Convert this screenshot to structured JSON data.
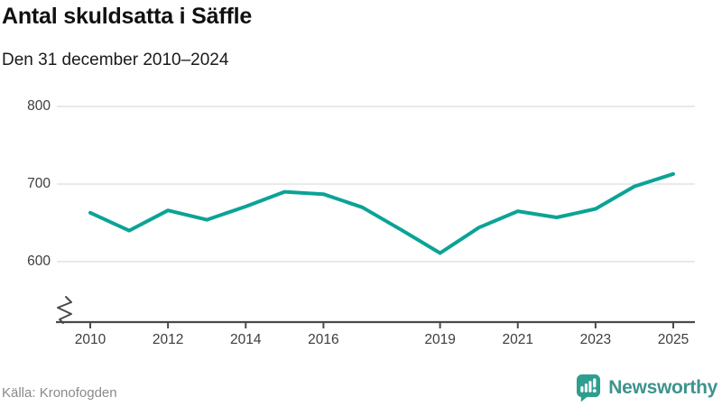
{
  "header": {
    "title": "Antal skuldsatta i Säffle",
    "subtitle": "Den 31 december 2010–2024"
  },
  "footer": {
    "source": "Källa: Kronofogden",
    "brand": {
      "name": "Newsworthy",
      "icon": "bar-chart-speech-bubble-icon",
      "icon_color": "#2F9E8F",
      "text_color": "#3E938C"
    }
  },
  "chart_data": {
    "type": "line",
    "title": "Antal skuldsatta i Säffle",
    "subtitle": "Den 31 december 2010–2024",
    "series_name": "Antal skuldsatta",
    "x": [
      2010,
      2011,
      2012,
      2013,
      2014,
      2015,
      2016,
      2017,
      2018,
      2019,
      2020,
      2021,
      2022,
      2023,
      2024,
      2025
    ],
    "values": [
      663,
      640,
      666,
      654,
      671,
      690,
      687,
      670,
      641,
      611,
      644,
      665,
      657,
      668,
      697,
      713
    ],
    "x_ticks": [
      2010,
      2012,
      2014,
      2016,
      2019,
      2021,
      2023,
      2025
    ],
    "y_ticks": [
      600,
      700,
      800
    ],
    "ylim": [
      600,
      800
    ],
    "y_axis_break": true,
    "grid": true,
    "legend": "none",
    "line_color": "#0BA396",
    "grid_color": "#E2E2E2",
    "axis_color": "#4A4A4A",
    "tick_label_color": "#3D3D3D"
  }
}
